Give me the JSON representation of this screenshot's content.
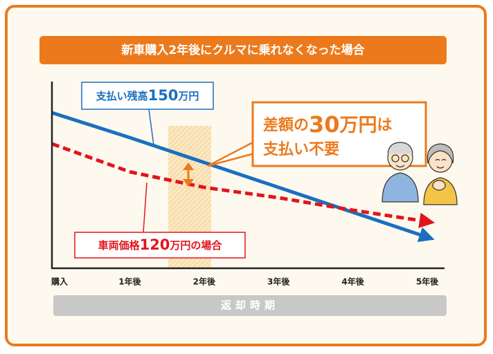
{
  "chart_data": {
    "type": "line",
    "title": "新車購入2年後にクルマに乗れなくなった場合",
    "categories": [
      "購入",
      "1年後",
      "2年後",
      "3年後",
      "4年後",
      "5年後"
    ],
    "series": [
      {
        "color": "#1a6fc0",
        "dashed": false,
        "values": [
          150,
          126,
          102,
          78,
          54,
          30
        ]
      },
      {
        "color": "#e3141c",
        "dashed": true,
        "values": [
          120,
          93,
          78,
          68,
          56,
          45
        ]
      }
    ],
    "ylim": [
      0,
      180
    ],
    "x_axis_label": "返却時期",
    "annotations": {
      "balance": [
        "支払い残高",
        "150",
        "万円"
      ],
      "vehicle": [
        "車両価格",
        "120",
        "万円の場合"
      ],
      "difference_line1": [
        "差額の",
        "30",
        "万円",
        "は"
      ],
      "difference_line2": "支払い不要"
    }
  }
}
